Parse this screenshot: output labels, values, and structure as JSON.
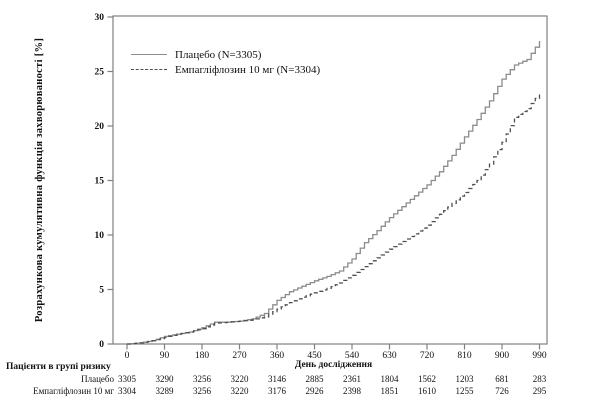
{
  "chart_data": {
    "type": "line",
    "title": "",
    "ylabel": "Розрахункова кумулятивна функція захворюваності [%]",
    "xlabel": "День дослідження",
    "x_ticks": [
      0,
      90,
      180,
      270,
      360,
      450,
      540,
      630,
      720,
      810,
      900,
      990
    ],
    "y_ticks": [
      0,
      5,
      10,
      15,
      20,
      25,
      30
    ],
    "xlim": [
      0,
      990
    ],
    "ylim": [
      0,
      30
    ],
    "grid": false,
    "legend_position": "top-left-inside",
    "x": [
      0,
      30,
      60,
      90,
      120,
      150,
      180,
      210,
      240,
      270,
      300,
      330,
      360,
      390,
      420,
      450,
      480,
      510,
      540,
      570,
      600,
      630,
      660,
      690,
      720,
      750,
      780,
      810,
      840,
      870,
      900,
      930,
      960,
      990
    ],
    "series": [
      {
        "name": "Плацебо (N=3305)",
        "style": "solid",
        "color": "#8c8c8c",
        "values": [
          0,
          0.1,
          0.3,
          0.7,
          0.9,
          1.1,
          1.5,
          2.0,
          2.0,
          2.1,
          2.3,
          2.8,
          4.0,
          4.8,
          5.3,
          5.8,
          6.2,
          6.7,
          7.8,
          9.3,
          10.4,
          11.6,
          12.6,
          13.6,
          14.6,
          15.8,
          17.3,
          19.0,
          20.6,
          22.3,
          24.3,
          25.6,
          26.1,
          27.8
        ]
      },
      {
        "name": "Емпагліфлозин 10 мг (N=3304)",
        "style": "dashed",
        "color": "#4f4f4f",
        "values": [
          0,
          0.1,
          0.3,
          0.6,
          0.9,
          1.1,
          1.4,
          1.9,
          2.0,
          2.1,
          2.2,
          2.5,
          3.2,
          3.8,
          4.3,
          4.7,
          5.1,
          5.6,
          6.3,
          7.1,
          7.9,
          8.7,
          9.4,
          10.1,
          10.9,
          11.9,
          12.9,
          13.9,
          15.0,
          16.5,
          18.5,
          20.8,
          21.6,
          23.0
        ]
      }
    ]
  },
  "risk_table": {
    "title": "Пацієнти в групі ризику",
    "rows": [
      {
        "label": "Плацебо",
        "values": [
          "3305",
          "3290",
          "3256",
          "3220",
          "3146",
          "2885",
          "2361",
          "1804",
          "1562",
          "1203",
          "681",
          "283"
        ]
      },
      {
        "label": "Емпагліфлозин 10 мг",
        "values": [
          "3304",
          "3289",
          "3256",
          "3220",
          "3176",
          "2926",
          "2398",
          "1851",
          "1610",
          "1255",
          "726",
          "295"
        ]
      }
    ]
  },
  "colors": {
    "frame": "#808080",
    "text": "#111111"
  }
}
